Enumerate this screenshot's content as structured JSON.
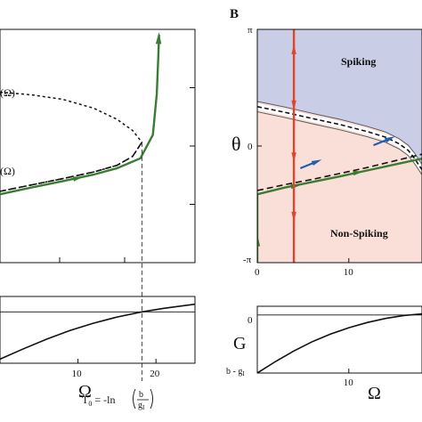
{
  "panel_b_label": "B",
  "colors": {
    "green": "#3a7d32",
    "red": "#e0442a",
    "blue": "#1f5fb0",
    "spiking_fill": "#c9cde6",
    "nonspiking_fill": "#fadfd9",
    "black": "#111111"
  },
  "chart_data": [
    {
      "id": "panel-a-top",
      "type": "line",
      "xlim": [
        0,
        25
      ],
      "ylim": [
        -3.1416,
        3.1416
      ],
      "labels": {
        "upper_branch": "(Ω)",
        "lower_branch": "(Ω)"
      },
      "series": [
        {
          "style": "dotted",
          "x": [
            0,
            4,
            8,
            12,
            15,
            17,
            18.2,
            17,
            15,
            12,
            8,
            4,
            0
          ],
          "y": [
            1.45,
            1.38,
            1.26,
            1.02,
            0.72,
            0.42,
            0.1,
            -0.28,
            -0.52,
            -0.7,
            -0.88,
            -1.05,
            -1.22
          ]
        },
        {
          "style": "dashed",
          "x": [
            0,
            4,
            8,
            12,
            15,
            17,
            18.2
          ],
          "y": [
            -1.22,
            -1.05,
            -0.88,
            -0.7,
            -0.52,
            -0.28,
            0.1
          ]
        },
        {
          "style": "solid-green",
          "x": [
            0,
            4,
            8,
            12,
            15,
            18,
            19.6,
            20.1,
            20.3,
            20.4
          ],
          "y": [
            -1.3,
            -1.12,
            -0.95,
            -0.77,
            -0.6,
            -0.33,
            0.3,
            1.4,
            2.4,
            3.0
          ]
        }
      ],
      "arrows": [
        {
          "x": 10,
          "y": -0.86
        },
        {
          "x": 20.35,
          "y": 2.9
        }
      ],
      "annotations": {
        "t0_x": 18.2,
        "t0_prefix": "T",
        "t0_sub": "0",
        "t0_eq": " = -ln",
        "t0_num": "b",
        "t0_den_main": "g",
        "t0_den_sub": "I"
      }
    },
    {
      "id": "panel-a-bottom",
      "type": "line",
      "xlim": [
        0,
        25
      ],
      "ylim": [
        -1,
        0.3
      ],
      "xticks": [
        10,
        20
      ],
      "xticklabels": [
        "10",
        "20"
      ],
      "xlabel": "Ω",
      "series": [
        {
          "style": "solid",
          "x": [
            0,
            3,
            6,
            9,
            12,
            15,
            18.2,
            21,
            25
          ],
          "y": [
            -0.92,
            -0.72,
            -0.53,
            -0.36,
            -0.22,
            -0.1,
            0,
            0.07,
            0.15
          ]
        }
      ]
    },
    {
      "id": "panel-b-top",
      "type": "area",
      "xlim": [
        0,
        18
      ],
      "ylim": [
        -3.1416,
        3.1416
      ],
      "yticklabels": {
        "top": "π",
        "mid": "0",
        "bottom": "-π"
      },
      "xticks": [
        0,
        10
      ],
      "xticklabels": [
        "0",
        "10"
      ],
      "ylabel": "θ",
      "region_labels": {
        "spiking": "Spiking",
        "nonspiking": "Non-Spiking"
      },
      "boundary": {
        "x": [
          0,
          3,
          6,
          9,
          12,
          14,
          15.5,
          16.5,
          17.2,
          18
        ],
        "y": [
          1.2,
          1.05,
          0.88,
          0.72,
          0.53,
          0.38,
          0.2,
          0.02,
          -0.2,
          -0.5
        ]
      },
      "nullcline": {
        "x": [
          0,
          3,
          6,
          9,
          12,
          15,
          18
        ],
        "y": [
          -1.2,
          -1.04,
          -0.9,
          -0.74,
          -0.58,
          -0.4,
          -0.22
        ]
      },
      "green_trajectory": {
        "x": [
          0,
          0,
          0,
          3,
          6,
          9,
          12,
          15,
          18
        ],
        "y": [
          -3.14,
          -2.2,
          -1.3,
          -1.12,
          -0.97,
          -0.82,
          -0.66,
          -0.5,
          -0.34
        ]
      },
      "red_line_x": 4,
      "red_arrows_y": [
        2.6,
        1.1,
        -0.3,
        -1.9
      ],
      "blue_arrows": [
        {
          "x": 6.5,
          "y": -0.42
        },
        {
          "x": 14.5,
          "y": 0.2
        }
      ]
    },
    {
      "id": "panel-b-bottom",
      "type": "line",
      "xlim": [
        0,
        18
      ],
      "ylim": [
        -1,
        0.15
      ],
      "xticks": [
        10
      ],
      "xticklabels": [
        "10"
      ],
      "xlabel": "Ω",
      "ylabel": "G",
      "yticklabels": {
        "zero": "0",
        "low": "b - g",
        "low_sub": "I"
      },
      "series": [
        {
          "style": "solid",
          "x": [
            0,
            2,
            4,
            6,
            8,
            10,
            12,
            14,
            16,
            18
          ],
          "y": [
            -1,
            -0.8,
            -0.62,
            -0.46,
            -0.33,
            -0.22,
            -0.13,
            -0.06,
            -0.01,
            0.02
          ]
        }
      ]
    }
  ]
}
